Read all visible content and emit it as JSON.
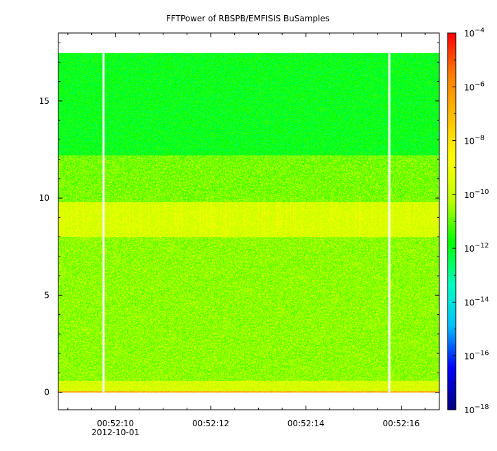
{
  "chart_data": {
    "type": "heatmap",
    "title": "FFTPower of RBSPB/EMFISIS  BuSamples",
    "xlabel": "",
    "ylabel": "",
    "x_ticks": [
      {
        "label": "00:52:10",
        "sublabel": "2012-10-01",
        "t": 10
      },
      {
        "label": "00:52:12",
        "t": 12
      },
      {
        "label": "00:52:14",
        "t": 14
      },
      {
        "label": "00:52:16",
        "t": 16
      }
    ],
    "x_range": [
      8.8,
      16.8
    ],
    "y_ticks": [
      0,
      5,
      10,
      15
    ],
    "y_range": [
      -0.9,
      18.5
    ],
    "y_data_range": [
      0,
      17.5
    ],
    "data_gaps_t": [
      9.75,
      15.75
    ],
    "colorbar": {
      "scale": "log",
      "min_exp": -18,
      "max_exp": -4,
      "tick_exps": [
        -4,
        -6,
        -8,
        -10,
        -12,
        -14,
        -16,
        -18
      ],
      "tick_base": "10",
      "colors": [
        "#00007f",
        "#0000ff",
        "#00bfff",
        "#00ffbf",
        "#00ff00",
        "#bfff00",
        "#ffff00",
        "#ffbf00",
        "#ff7f00",
        "#ff0000"
      ]
    },
    "bands": [
      {
        "y": [
          0,
          0.06
        ],
        "level_exp": -6.5,
        "desc": "baseline"
      },
      {
        "y": [
          0.06,
          0.6
        ],
        "level_exp": -9.6
      },
      {
        "y": [
          0.6,
          8.0
        ],
        "level_exp": -10.6
      },
      {
        "y": [
          8.0,
          9.8
        ],
        "level_exp": -9.6
      },
      {
        "y": [
          9.8,
          12.2
        ],
        "level_exp": -10.8
      },
      {
        "y": [
          12.2,
          17.5
        ],
        "level_exp": -11.9
      }
    ]
  }
}
